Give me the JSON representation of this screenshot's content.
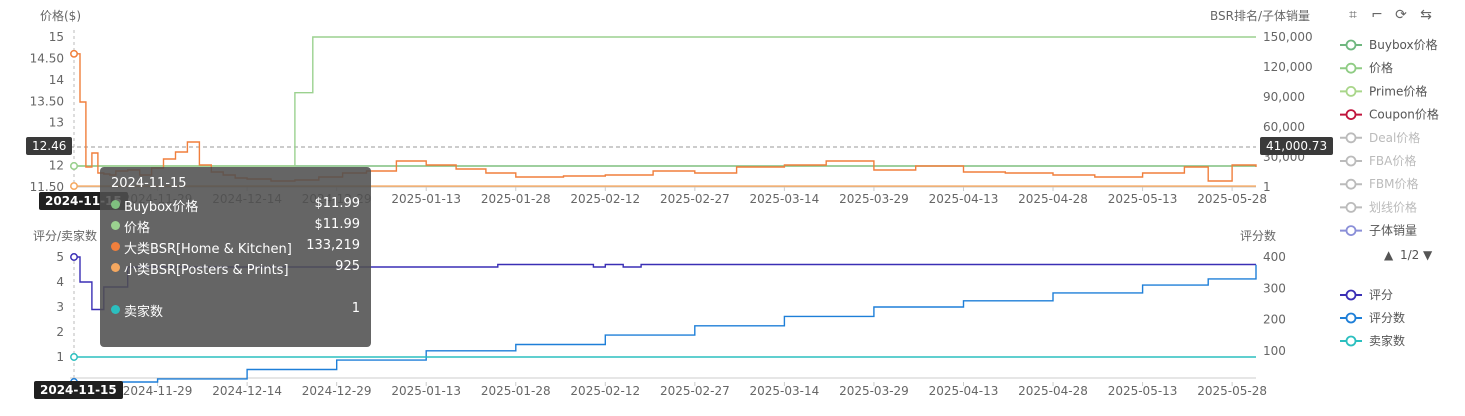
{
  "toolbar": {
    "icons": [
      "zoom-select-icon",
      "zoom-reset-icon",
      "restore-icon",
      "swap-icon"
    ],
    "glyphs": [
      "⌗",
      "⌐",
      "⟳",
      "⇆"
    ]
  },
  "legend": {
    "page": "1/2",
    "prev_arrow": "▲",
    "next_arrow": "▼",
    "items": [
      {
        "label": "Buybox价格",
        "color": "#6fb77f",
        "active": true
      },
      {
        "label": "价格",
        "color": "#8fcc84",
        "active": true
      },
      {
        "label": "Prime价格",
        "color": "#a9d68a",
        "active": true
      },
      {
        "label": "Coupon价格",
        "color": "#c0143c",
        "active": true
      },
      {
        "label": "Deal价格",
        "color": "#bbbbbb",
        "active": false
      },
      {
        "label": "FBA价格",
        "color": "#bbbbbb",
        "active": false
      },
      {
        "label": "FBM价格",
        "color": "#bbbbbb",
        "active": false
      },
      {
        "label": "划线价格",
        "color": "#bbbbbb",
        "active": false
      },
      {
        "label": "子体销量",
        "color": "#8a8fd8",
        "active": true
      }
    ],
    "items_bottom": [
      {
        "label": "评分",
        "color": "#3a2fb5"
      },
      {
        "label": "评分数",
        "color": "#1e7fd8"
      },
      {
        "label": "卖家数",
        "color": "#2bbfbf"
      }
    ]
  },
  "crosshair": {
    "left_value": "12.46",
    "right_value": "41,000.73",
    "date_top": "2024-11-15",
    "date_bottom": "2024-11-15"
  },
  "tooltip": {
    "date": "2024-11-15",
    "rows": [
      {
        "name": "Buybox价格",
        "value": "$11.99",
        "color": "#7fbf7f"
      },
      {
        "name": "价格",
        "value": "$11.99",
        "color": "#9bd18f"
      },
      {
        "name": "大类BSR[Home & Kitchen]",
        "value": "133,219",
        "color": "#f07f3c"
      },
      {
        "name": "小类BSR[Posters & Prints]",
        "value": "925",
        "color": "#f5a860"
      },
      {
        "name": "卖家数",
        "value": "1",
        "color": "#2bbfbf"
      }
    ]
  },
  "chart_data": [
    {
      "type": "line",
      "title": "",
      "ylabel": "价格($)",
      "y2label": "BSR排名/子体销量",
      "ylim": [
        11.5,
        15
      ],
      "y2lim": [
        1,
        150000
      ],
      "y_ticks": [
        "11.50",
        "12",
        "12.50",
        "13",
        "13.50",
        "14",
        "14.50",
        "15"
      ],
      "y2_ticks": [
        "1",
        "30,000",
        "60,000",
        "90,000",
        "120,000",
        "150,000"
      ],
      "x_ticks": [
        "2024-11-29",
        "2024-12-14",
        "2024-12-29",
        "2025-01-13",
        "2025-01-28",
        "2025-02-12",
        "2025-02-27",
        "2025-03-14",
        "2025-03-29",
        "2025-04-13",
        "2025-04-28",
        "2025-05-13",
        "2025-05-28"
      ],
      "x_range": [
        "2024-11-15",
        "2025-06-01"
      ],
      "grid": false,
      "legend": "right",
      "series": [
        {
          "name": "Buybox价格",
          "axis": "left",
          "color": "#7fbf7f",
          "x": [
            "2024-11-15",
            "2025-06-01"
          ],
          "values": [
            11.99,
            11.99
          ]
        },
        {
          "name": "价格",
          "axis": "left",
          "color": "#9bd18f",
          "x": [
            "2024-11-15",
            "2024-12-21",
            "2024-12-22",
            "2024-12-24",
            "2024-12-25",
            "2025-06-01"
          ],
          "values": [
            11.99,
            11.99,
            13.7,
            13.7,
            15.0,
            15.0
          ]
        },
        {
          "name": "大类BSR[Home & Kitchen]",
          "axis": "right",
          "color": "#f07f3c",
          "x": [
            "2024-11-15",
            "2024-11-16",
            "2024-11-17",
            "2024-11-18",
            "2024-11-19",
            "2024-11-20",
            "2024-11-21",
            "2024-11-22",
            "2024-11-24",
            "2024-11-26",
            "2024-11-28",
            "2024-11-30",
            "2024-12-02",
            "2024-12-04",
            "2024-12-06",
            "2024-12-08",
            "2024-12-10",
            "2024-12-12",
            "2024-12-14",
            "2024-12-18",
            "2024-12-22",
            "2024-12-26",
            "2024-12-30",
            "2025-01-03",
            "2025-01-08",
            "2025-01-13",
            "2025-01-18",
            "2025-01-23",
            "2025-01-28",
            "2025-02-05",
            "2025-02-12",
            "2025-02-20",
            "2025-02-27",
            "2025-03-06",
            "2025-03-14",
            "2025-03-21",
            "2025-03-29",
            "2025-04-05",
            "2025-04-13",
            "2025-04-20",
            "2025-04-28",
            "2025-05-05",
            "2025-05-13",
            "2025-05-20",
            "2025-05-24",
            "2025-05-28",
            "2025-06-01"
          ],
          "values": [
            133219,
            85000,
            20000,
            34000,
            14000,
            13000,
            12000,
            16000,
            17000,
            12000,
            19000,
            28000,
            35000,
            45000,
            22000,
            15000,
            12000,
            9000,
            8000,
            6000,
            7000,
            10000,
            14000,
            16000,
            26000,
            22000,
            18000,
            14000,
            10000,
            11000,
            12000,
            16000,
            14000,
            20000,
            22000,
            26000,
            17000,
            21000,
            15000,
            14000,
            12000,
            10000,
            14000,
            20000,
            6000,
            22000,
            20000
          ]
        },
        {
          "name": "小类BSR[Posters & Prints]",
          "axis": "right",
          "color": "#f5a860",
          "x": [
            "2024-11-15",
            "2025-06-01"
          ],
          "values": [
            925,
            900
          ]
        }
      ]
    },
    {
      "type": "line",
      "title": "",
      "ylabel": "评分/卖家数",
      "y2label": "评分数",
      "ylim": [
        0,
        5
      ],
      "y2lim": [
        0,
        400
      ],
      "y_ticks": [
        "1",
        "2",
        "3",
        "4",
        "5"
      ],
      "y2_ticks": [
        "100",
        "200",
        "300",
        "400"
      ],
      "x_ticks": [
        "2024-11-29",
        "2024-12-14",
        "2024-12-29",
        "2025-01-13",
        "2025-01-28",
        "2025-02-12",
        "2025-02-27",
        "2025-03-14",
        "2025-03-29",
        "2025-04-13",
        "2025-04-28",
        "2025-05-13",
        "2025-05-28"
      ],
      "x_range": [
        "2024-11-15",
        "2025-06-01"
      ],
      "grid": false,
      "legend": "right",
      "series": [
        {
          "name": "评分",
          "axis": "left",
          "color": "#3a2fb5",
          "x": [
            "2024-11-15",
            "2024-11-16",
            "2024-11-18",
            "2024-11-20",
            "2024-11-24",
            "2024-12-20",
            "2025-01-10",
            "2025-01-25",
            "2025-02-10",
            "2025-02-12",
            "2025-02-15",
            "2025-02-18",
            "2025-06-01"
          ],
          "values": [
            5.0,
            4.0,
            2.9,
            3.8,
            4.6,
            4.6,
            4.6,
            4.7,
            4.6,
            4.7,
            4.6,
            4.7,
            4.7
          ]
        },
        {
          "name": "评分数",
          "axis": "right",
          "color": "#1e7fd8",
          "x": [
            "2024-11-15",
            "2024-11-29",
            "2024-12-14",
            "2024-12-29",
            "2025-01-13",
            "2025-01-28",
            "2025-02-12",
            "2025-02-27",
            "2025-03-14",
            "2025-03-29",
            "2025-04-13",
            "2025-04-28",
            "2025-05-13",
            "2025-05-24",
            "2025-06-01"
          ],
          "values": [
            0,
            10,
            40,
            70,
            100,
            120,
            150,
            180,
            210,
            240,
            260,
            285,
            310,
            330,
            375
          ]
        },
        {
          "name": "卖家数",
          "axis": "left",
          "color": "#2bbfbf",
          "x": [
            "2024-11-15",
            "2025-06-01"
          ],
          "values": [
            1,
            1
          ]
        }
      ]
    }
  ]
}
